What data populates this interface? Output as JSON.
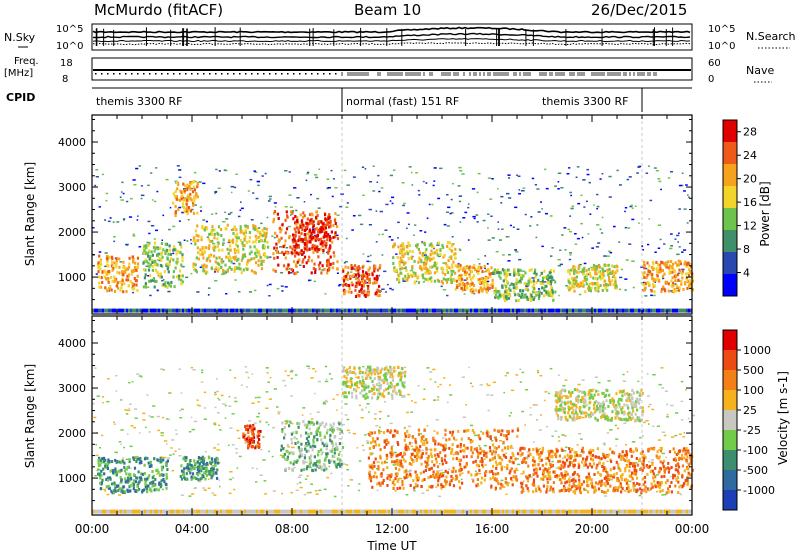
{
  "header": {
    "station": "McMurdo (fitACF)",
    "beam": "Beam 10",
    "date": "26/Dec/2015"
  },
  "summary_panels": {
    "nsky_label": "N.Sky",
    "nsky_ticks": [
      "10^5",
      "10^0"
    ],
    "nsearch_label": "N.Search",
    "nsearch_ticks": [
      "10^5",
      "10^0"
    ],
    "freq_label": "Freq.",
    "freq_unit": "[MHz]",
    "freq_ticks": [
      "18",
      "8"
    ],
    "nave_label": "Nave",
    "nave_ticks": [
      "60",
      "0"
    ],
    "cpid_label": "CPID",
    "cpid_segments": [
      {
        "label": "themis 3300 RF",
        "start_hour": 0,
        "end_hour": 10.0
      },
      {
        "label": "normal (fast) 151 RF",
        "start_hour": 10.0,
        "end_hour": 22.0
      },
      {
        "label": "themis 3300 RF",
        "start_hour": 22.0,
        "end_hour": 24
      }
    ]
  },
  "chart_data": [
    {
      "type": "heatmap",
      "name": "power",
      "ylabel": "Slant Range [km]",
      "xlabel": "Time UT",
      "x_ticks": [
        "00:00",
        "04:00",
        "08:00",
        "12:00",
        "16:00",
        "20:00",
        "00:00"
      ],
      "xlim_hours": [
        0,
        24
      ],
      "y_ticks": [
        1000,
        2000,
        3000,
        4000
      ],
      "ylim": [
        180,
        4600
      ],
      "colorbar": {
        "label": "Power [dB]",
        "ticks": [
          4,
          8,
          12,
          16,
          20,
          24,
          28
        ],
        "range": [
          0,
          30
        ],
        "colors": [
          "#0000ff",
          "#2a49b0",
          "#3f8f6a",
          "#6dc34c",
          "#f2d42a",
          "#f7a21d",
          "#ef5a18",
          "#e00000"
        ]
      },
      "echo_bands": [
        {
          "t0": 0.2,
          "t1": 1.8,
          "r0": 700,
          "r1": 1500,
          "level": 5
        },
        {
          "t0": 2.0,
          "t1": 3.6,
          "r0": 800,
          "r1": 1800,
          "level": 3
        },
        {
          "t0": 3.2,
          "t1": 4.2,
          "r0": 2400,
          "r1": 3200,
          "level": 5
        },
        {
          "t0": 4.0,
          "t1": 7.0,
          "r0": 1100,
          "r1": 2200,
          "level": 4
        },
        {
          "t0": 7.2,
          "t1": 9.8,
          "r0": 1100,
          "r1": 2500,
          "level": 6
        },
        {
          "t0": 8.0,
          "t1": 9.5,
          "r0": 1600,
          "r1": 2400,
          "level": 7
        },
        {
          "t0": 10.0,
          "t1": 11.5,
          "r0": 600,
          "r1": 1300,
          "level": 6
        },
        {
          "t0": 12.0,
          "t1": 14.5,
          "r0": 900,
          "r1": 1800,
          "level": 4
        },
        {
          "t0": 14.5,
          "t1": 16.0,
          "r0": 700,
          "r1": 1300,
          "level": 5
        },
        {
          "t0": 16.0,
          "t1": 18.5,
          "r0": 500,
          "r1": 1200,
          "level": 3
        },
        {
          "t0": 19.0,
          "t1": 21.0,
          "r0": 700,
          "r1": 1300,
          "level": 4
        },
        {
          "t0": 22.0,
          "t1": 24.0,
          "r0": 700,
          "r1": 1400,
          "level": 5
        }
      ]
    },
    {
      "type": "heatmap",
      "name": "velocity",
      "ylabel": "Slant Range [km]",
      "xlabel": "Time UT",
      "x_ticks": [
        "00:00",
        "04:00",
        "08:00",
        "12:00",
        "16:00",
        "20:00",
        "00:00"
      ],
      "xlim_hours": [
        0,
        24
      ],
      "y_ticks": [
        1000,
        2000,
        3000,
        4000
      ],
      "ylim": [
        180,
        4600
      ],
      "colorbar": {
        "label": "Velocity [m s-1]",
        "ticks": [
          1000,
          500,
          100,
          25,
          -25,
          -100,
          -500,
          -1000
        ],
        "colors": [
          "#1c3fb5",
          "#2f6aa0",
          "#3b8f6f",
          "#72cc49",
          "#c8c8c0",
          "#f6b21c",
          "#f47f16",
          "#ee4a14",
          "#e00000"
        ]
      },
      "echo_bands": [
        {
          "t0": 0.2,
          "t1": 3.0,
          "r0": 700,
          "r1": 1500,
          "level": 2
        },
        {
          "t0": 3.5,
          "t1": 5.0,
          "r0": 1000,
          "r1": 1500,
          "level": 2
        },
        {
          "t0": 6.0,
          "t1": 6.7,
          "r0": 1700,
          "r1": 2200,
          "level": 7
        },
        {
          "t0": 7.5,
          "t1": 10.0,
          "r0": 1200,
          "r1": 2300,
          "level": 3
        },
        {
          "t0": 10.0,
          "t1": 12.5,
          "r0": 2800,
          "r1": 3500,
          "level": 4
        },
        {
          "t0": 11.0,
          "t1": 17.0,
          "r0": 800,
          "r1": 2100,
          "level": 6
        },
        {
          "t0": 17.0,
          "t1": 24.0,
          "r0": 700,
          "r1": 1700,
          "level": 6
        },
        {
          "t0": 18.5,
          "t1": 22.0,
          "r0": 2300,
          "r1": 3000,
          "level": 4
        }
      ]
    }
  ]
}
